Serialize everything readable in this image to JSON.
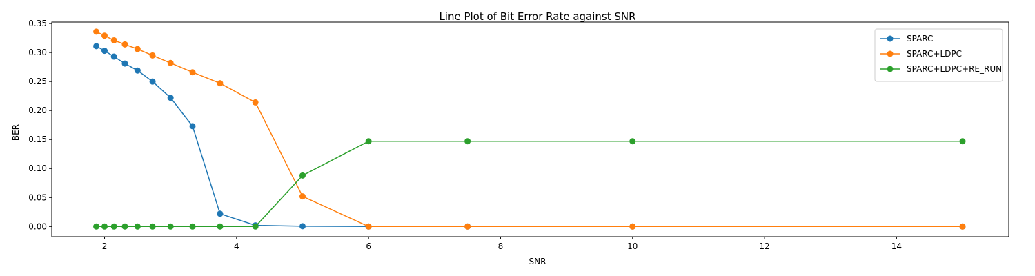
{
  "chart_data": {
    "type": "line",
    "title": "Line Plot of Bit Error Rate against SNR",
    "xlabel": "SNR",
    "ylabel": "BER",
    "xlim": [
      1.2,
      15.7
    ],
    "ylim": [
      -0.0175,
      0.3525
    ],
    "xticks": [
      2,
      4,
      6,
      8,
      10,
      12,
      14
    ],
    "yticks": [
      0.0,
      0.05,
      0.1,
      0.15,
      0.2,
      0.25,
      0.3,
      0.35
    ],
    "ytick_labels": [
      "0.00",
      "0.05",
      "0.10",
      "0.15",
      "0.20",
      "0.25",
      "0.30",
      "0.35"
    ],
    "grid": false,
    "legend_position": "top-right",
    "x": [
      1.875,
      2.0,
      2.143,
      2.308,
      2.5,
      2.727,
      3.0,
      3.333,
      3.75,
      4.286,
      5.0,
      6.0,
      7.5,
      10.0,
      15.0
    ],
    "series": [
      {
        "name": "SPARC",
        "color": "#1f77b4",
        "x": [
          1.875,
          2.0,
          2.143,
          2.308,
          2.5,
          2.727,
          3.0,
          3.333,
          3.75,
          4.286,
          5.0,
          6.0,
          7.5,
          10.0,
          15.0
        ],
        "values": [
          0.311,
          0.303,
          0.293,
          0.281,
          0.269,
          0.25,
          0.222,
          0.173,
          0.022,
          0.002,
          0.0005,
          0.0,
          0.0,
          0.0,
          0.0
        ]
      },
      {
        "name": "SPARC+LDPC",
        "color": "#ff7f0e",
        "x": [
          1.875,
          2.0,
          2.143,
          2.308,
          2.5,
          2.727,
          3.0,
          3.333,
          3.75,
          4.286,
          5.0,
          6.0,
          7.5,
          10.0,
          15.0
        ],
        "values": [
          0.336,
          0.329,
          0.321,
          0.314,
          0.306,
          0.295,
          0.282,
          0.266,
          0.247,
          0.214,
          0.052,
          0.0,
          0.0,
          0.0,
          0.0
        ]
      },
      {
        "name": "SPARC+LDPC+RE_RUN",
        "color": "#2ca02c",
        "x": [
          1.875,
          2.0,
          2.143,
          2.308,
          2.5,
          2.727,
          3.0,
          3.333,
          3.75,
          4.286,
          5.0,
          6.0,
          7.5,
          10.0,
          15.0
        ],
        "values": [
          0.0,
          0.0,
          0.0,
          0.0,
          0.0,
          0.0,
          0.0,
          0.0,
          0.0,
          0.0,
          0.088,
          0.147,
          0.147,
          0.147,
          0.147
        ]
      }
    ]
  }
}
